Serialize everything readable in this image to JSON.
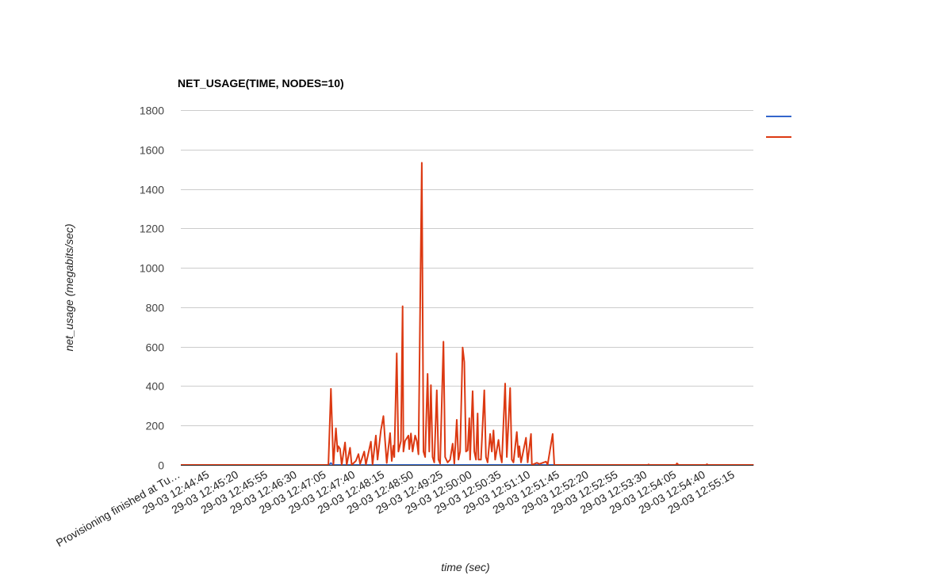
{
  "chart_data": {
    "type": "line",
    "title": "NET_USAGE(TIME, NODES=10)",
    "xlabel": "time (sec)",
    "ylabel": "net_usage (megabits/sec)",
    "ylim": [
      0,
      1800
    ],
    "yticks": [
      0,
      200,
      400,
      600,
      800,
      1000,
      1200,
      1400,
      1600,
      1800
    ],
    "grid": true,
    "legend_position": "right",
    "x_start": "12:44:10",
    "x_end": "12:55:37",
    "x_tick_labels": [
      "Provisioning finished at Tu…",
      "29-03 12:44:45",
      "29-03 12:45:20",
      "29-03 12:45:55",
      "29-03 12:46:30",
      "29-03 12:47:05",
      "29-03 12:47:40",
      "29-03 12:48:15",
      "29-03 12:48:50",
      "29-03 12:49:25",
      "29-03 12:50:00",
      "29-03 12:50:35",
      "29-03 12:51:10",
      "29-03 12:51:45",
      "29-03 12:52:20",
      "29-03 12:52:55",
      "29-03 12:53:30",
      "29-03 12:54:05",
      "29-03 12:54:40",
      "29-03 12:55:15"
    ],
    "series": [
      {
        "color": "#3366cc",
        "points": [
          [
            "12:44:10",
            0
          ],
          [
            "12:47:08",
            0
          ],
          [
            "12:47:10",
            10
          ],
          [
            "12:47:12",
            0
          ],
          [
            "12:51:40",
            0
          ],
          [
            "12:55:37",
            0
          ]
        ]
      },
      {
        "color": "#dc3912",
        "points": [
          [
            "12:44:10",
            0
          ],
          [
            "12:47:07",
            0
          ],
          [
            "12:47:10",
            386
          ],
          [
            "12:47:13",
            0
          ],
          [
            "12:47:16",
            186
          ],
          [
            "12:47:18",
            68
          ],
          [
            "12:47:19",
            95
          ],
          [
            "12:47:21",
            82
          ],
          [
            "12:47:23",
            0
          ],
          [
            "12:47:27",
            114
          ],
          [
            "12:47:29",
            0
          ],
          [
            "12:47:33",
            87
          ],
          [
            "12:47:35",
            0
          ],
          [
            "12:47:40",
            21
          ],
          [
            "12:47:43",
            55
          ],
          [
            "12:47:45",
            5
          ],
          [
            "12:47:50",
            68
          ],
          [
            "12:47:52",
            2
          ],
          [
            "12:47:58",
            118
          ],
          [
            "12:48:00",
            2
          ],
          [
            "12:48:04",
            149
          ],
          [
            "12:48:06",
            27
          ],
          [
            "12:48:10",
            175
          ],
          [
            "12:48:13",
            248
          ],
          [
            "12:48:15",
            122
          ],
          [
            "12:48:17",
            10
          ],
          [
            "12:48:21",
            162
          ],
          [
            "12:48:23",
            20
          ],
          [
            "12:48:25",
            98
          ],
          [
            "12:48:26",
            40
          ],
          [
            "12:48:29",
            566
          ],
          [
            "12:48:31",
            68
          ],
          [
            "12:48:34",
            122
          ],
          [
            "12:48:36",
            805
          ],
          [
            "12:48:37",
            68
          ],
          [
            "12:48:39",
            122
          ],
          [
            "12:48:43",
            149
          ],
          [
            "12:48:44",
            80
          ],
          [
            "12:48:46",
            160
          ],
          [
            "12:48:48",
            68
          ],
          [
            "12:48:51",
            149
          ],
          [
            "12:48:53",
            122
          ],
          [
            "12:48:55",
            54
          ],
          [
            "12:48:59",
            1533
          ],
          [
            "12:49:01",
            68
          ],
          [
            "12:49:03",
            40
          ],
          [
            "12:49:06",
            462
          ],
          [
            "12:49:08",
            68
          ],
          [
            "12:49:10",
            405
          ],
          [
            "12:49:12",
            40
          ],
          [
            "12:49:14",
            13
          ],
          [
            "12:49:17",
            379
          ],
          [
            "12:49:19",
            27
          ],
          [
            "12:49:21",
            7
          ],
          [
            "12:49:25",
            625
          ],
          [
            "12:49:27",
            40
          ],
          [
            "12:49:30",
            13
          ],
          [
            "12:49:33",
            27
          ],
          [
            "12:49:36",
            108
          ],
          [
            "12:49:38",
            7
          ],
          [
            "12:49:41",
            229
          ],
          [
            "12:49:43",
            27
          ],
          [
            "12:49:45",
            68
          ],
          [
            "12:49:48",
            596
          ],
          [
            "12:49:50",
            522
          ],
          [
            "12:49:52",
            68
          ],
          [
            "12:49:54",
            74
          ],
          [
            "12:49:56",
            237
          ],
          [
            "12:49:57",
            27
          ],
          [
            "12:50:00",
            374
          ],
          [
            "12:50:02",
            68
          ],
          [
            "12:50:04",
            27
          ],
          [
            "12:50:06",
            261
          ],
          [
            "12:50:07",
            27
          ],
          [
            "12:50:10",
            27
          ],
          [
            "12:50:14",
            379
          ],
          [
            "12:50:16",
            40
          ],
          [
            "12:50:18",
            13
          ],
          [
            "12:50:21",
            157
          ],
          [
            "12:50:23",
            68
          ],
          [
            "12:50:25",
            175
          ],
          [
            "12:50:27",
            27
          ],
          [
            "12:50:31",
            127
          ],
          [
            "12:50:33",
            54
          ],
          [
            "12:50:35",
            13
          ],
          [
            "12:50:39",
            413
          ],
          [
            "12:50:41",
            40
          ],
          [
            "12:50:45",
            390
          ],
          [
            "12:50:47",
            27
          ],
          [
            "12:50:49",
            13
          ],
          [
            "12:50:53",
            167
          ],
          [
            "12:50:55",
            40
          ],
          [
            "12:50:56",
            95
          ],
          [
            "12:50:58",
            13
          ],
          [
            "12:51:04",
            138
          ],
          [
            "12:51:06",
            13
          ],
          [
            "12:51:10",
            157
          ],
          [
            "12:51:11",
            0
          ],
          [
            "12:51:17",
            11
          ],
          [
            "12:51:20",
            5
          ],
          [
            "12:51:28",
            17
          ],
          [
            "12:51:30",
            2
          ],
          [
            "12:51:36",
            157
          ],
          [
            "12:51:38",
            0
          ],
          [
            "12:53:30",
            0
          ],
          [
            "12:53:31",
            3
          ],
          [
            "12:53:32",
            0
          ],
          [
            "12:54:04",
            0
          ],
          [
            "12:54:05",
            8
          ],
          [
            "12:54:07",
            0
          ],
          [
            "12:54:40",
            0
          ],
          [
            "12:54:41",
            4
          ],
          [
            "12:54:42",
            0
          ],
          [
            "12:55:37",
            0
          ]
        ]
      }
    ]
  }
}
